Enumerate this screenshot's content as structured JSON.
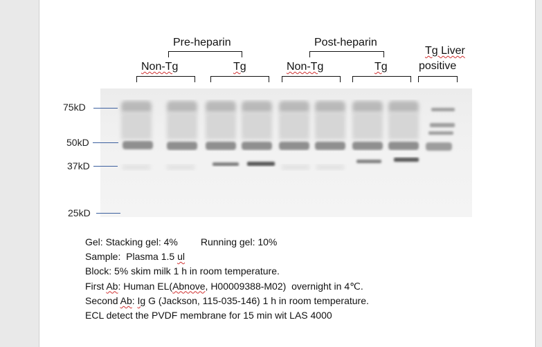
{
  "groups": {
    "pre": "Pre-heparin",
    "post": "Post-heparin",
    "liver_line1": "Tg Liver",
    "liver_line2": "positive"
  },
  "lanes": {
    "pre_nontg": "Non-Tg",
    "pre_tg": "Tg",
    "post_nontg": "Non-Tg",
    "post_tg": "Tg"
  },
  "markers": [
    "75kD",
    "50kD",
    "37kD",
    "25kD"
  ],
  "notes": {
    "gel_a": "Gel: Stacking gel: 4%",
    "gel_b": "Running gel: 10%",
    "sample_a": "Sample:  Plasma 1.5 ",
    "sample_b": "ul",
    "block": "Block: 5% skim milk 1 h in room temperature.",
    "first_a": "First ",
    "first_b": "Ab",
    "first_c": ": Human EL(",
    "first_d": "Abnove",
    "first_e": ", H00009388-M02)  overnight in 4℃.",
    "second_a": "Second ",
    "second_b": "Ab",
    "second_c": ": ",
    "second_d": "Ig",
    "second_e": " G (Jackson, 115-035-146) 1 h in room temperature.",
    "ecl": "ECL detect the PVDF membrane for 15 min wit LAS 4000"
  }
}
